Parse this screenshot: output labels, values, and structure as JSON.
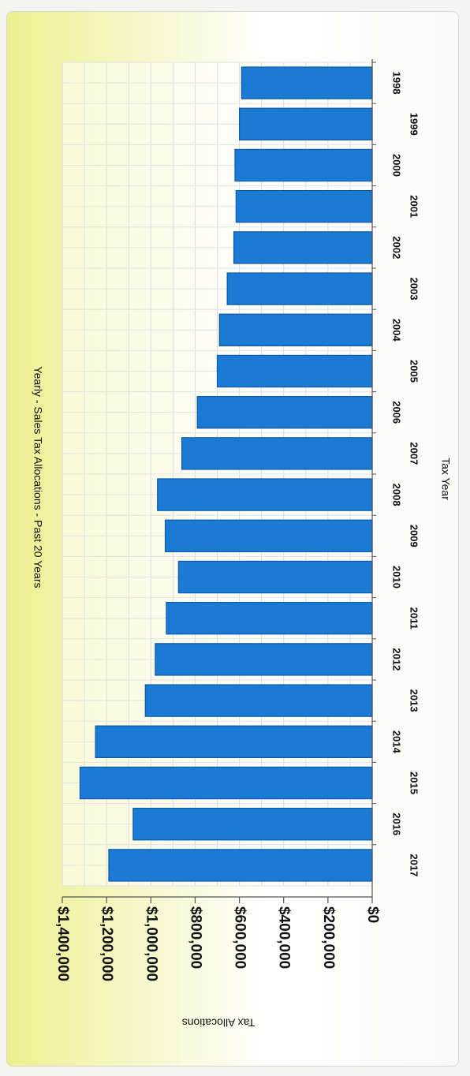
{
  "chart_data": {
    "type": "bar",
    "orientation": "horizontal",
    "title": "Yearly - Sales Tax Allocations - Past 20 Years",
    "xlabel": "Tax Year",
    "ylabel": "Tax Allocations",
    "categories": [
      "1998",
      "1999",
      "2000",
      "2001",
      "2002",
      "2003",
      "2004",
      "2005",
      "2006",
      "2007",
      "2008",
      "2009",
      "2010",
      "2011",
      "2012",
      "2013",
      "2014",
      "2015",
      "2016",
      "2017"
    ],
    "values": [
      590000,
      600000,
      620000,
      615000,
      625000,
      655000,
      690000,
      700000,
      790000,
      860000,
      970000,
      935000,
      875000,
      930000,
      980000,
      1025000,
      1250000,
      1320000,
      1080000,
      1190000
    ],
    "ylim": [
      0,
      1400000
    ],
    "y_ticks": [
      0,
      200000,
      400000,
      600000,
      800000,
      1000000,
      1200000,
      1400000
    ],
    "y_tick_labels": [
      "$0",
      "$200,000",
      "$400,000",
      "$600,000",
      "$800,000",
      "$1,000,000",
      "$1,200,000",
      "$1,400,000"
    ],
    "grid": true,
    "legend": "none",
    "bar_color": "#1a7ad4",
    "bar_edge_color": "#0f5aa6"
  }
}
